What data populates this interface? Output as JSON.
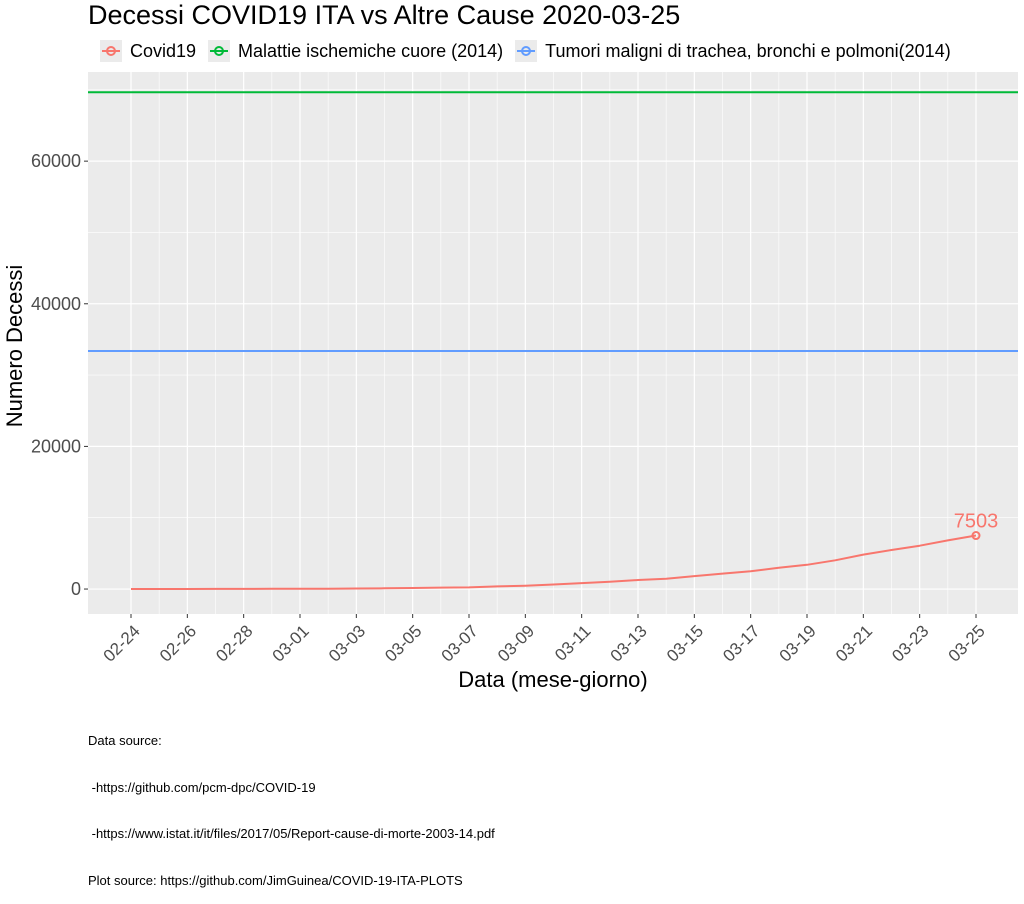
{
  "chart_data": {
    "type": "line",
    "title": "Decessi COVID19 ITA vs Altre Cause 2020-03-25",
    "xlabel": "Data (mese-giorno)",
    "ylabel": "Numero Decessi",
    "x": [
      "02-24",
      "02-25",
      "02-26",
      "02-27",
      "02-28",
      "02-29",
      "03-01",
      "03-02",
      "03-03",
      "03-04",
      "03-05",
      "03-06",
      "03-07",
      "03-08",
      "03-09",
      "03-10",
      "03-11",
      "03-12",
      "03-13",
      "03-14",
      "03-15",
      "03-16",
      "03-17",
      "03-18",
      "03-19",
      "03-20",
      "03-21",
      "03-22",
      "03-23",
      "03-24",
      "03-25"
    ],
    "x_tick_labels": [
      "02-24",
      "02-26",
      "02-28",
      "03-01",
      "03-03",
      "03-05",
      "03-07",
      "03-09",
      "03-11",
      "03-13",
      "03-15",
      "03-17",
      "03-19",
      "03-21",
      "03-23",
      "03-25"
    ],
    "ylim": [
      -3500,
      72500
    ],
    "y_ticks": [
      0,
      20000,
      40000,
      60000
    ],
    "grid": true,
    "legend_position": "top",
    "series": [
      {
        "name": "Covid19",
        "color": "#F8766D",
        "values": [
          7,
          10,
          12,
          17,
          21,
          29,
          34,
          52,
          79,
          107,
          148,
          197,
          233,
          366,
          463,
          631,
          827,
          1016,
          1266,
          1441,
          1809,
          2158,
          2503,
          2978,
          3405,
          4032,
          4825,
          5476,
          6077,
          6820,
          7503
        ]
      },
      {
        "name": "Malattie ischemiche cuore (2014)",
        "color": "#00BA38",
        "values": [
          69653,
          69653,
          69653,
          69653,
          69653,
          69653,
          69653,
          69653,
          69653,
          69653,
          69653,
          69653,
          69653,
          69653,
          69653,
          69653,
          69653,
          69653,
          69653,
          69653,
          69653,
          69653,
          69653,
          69653,
          69653,
          69653,
          69653,
          69653,
          69653,
          69653,
          69653
        ]
      },
      {
        "name": "Tumori maligni di trachea, bronchi e polmoni(2014)",
        "color": "#619CFF",
        "values": [
          33386,
          33386,
          33386,
          33386,
          33386,
          33386,
          33386,
          33386,
          33386,
          33386,
          33386,
          33386,
          33386,
          33386,
          33386,
          33386,
          33386,
          33386,
          33386,
          33386,
          33386,
          33386,
          33386,
          33386,
          33386,
          33386,
          33386,
          33386,
          33386,
          33386,
          33386
        ]
      }
    ],
    "annotations": [
      {
        "x": "03-25",
        "y": 7503,
        "text": "7503",
        "series": "Covid19"
      }
    ]
  },
  "caption": {
    "lines": [
      "Data source:",
      " -https://github.com/pcm-dpc/COVID-19",
      " -https://www.istat.it/it/files/2017/05/Report-cause-di-morte-2003-14.pdf",
      "Plot source: https://github.com/JimGuinea/COVID-19-ITA-PLOTS"
    ]
  },
  "colors": {
    "panel": "#EBEBEB",
    "grid": "#FFFFFF",
    "axis_text": "#4D4D4D"
  }
}
